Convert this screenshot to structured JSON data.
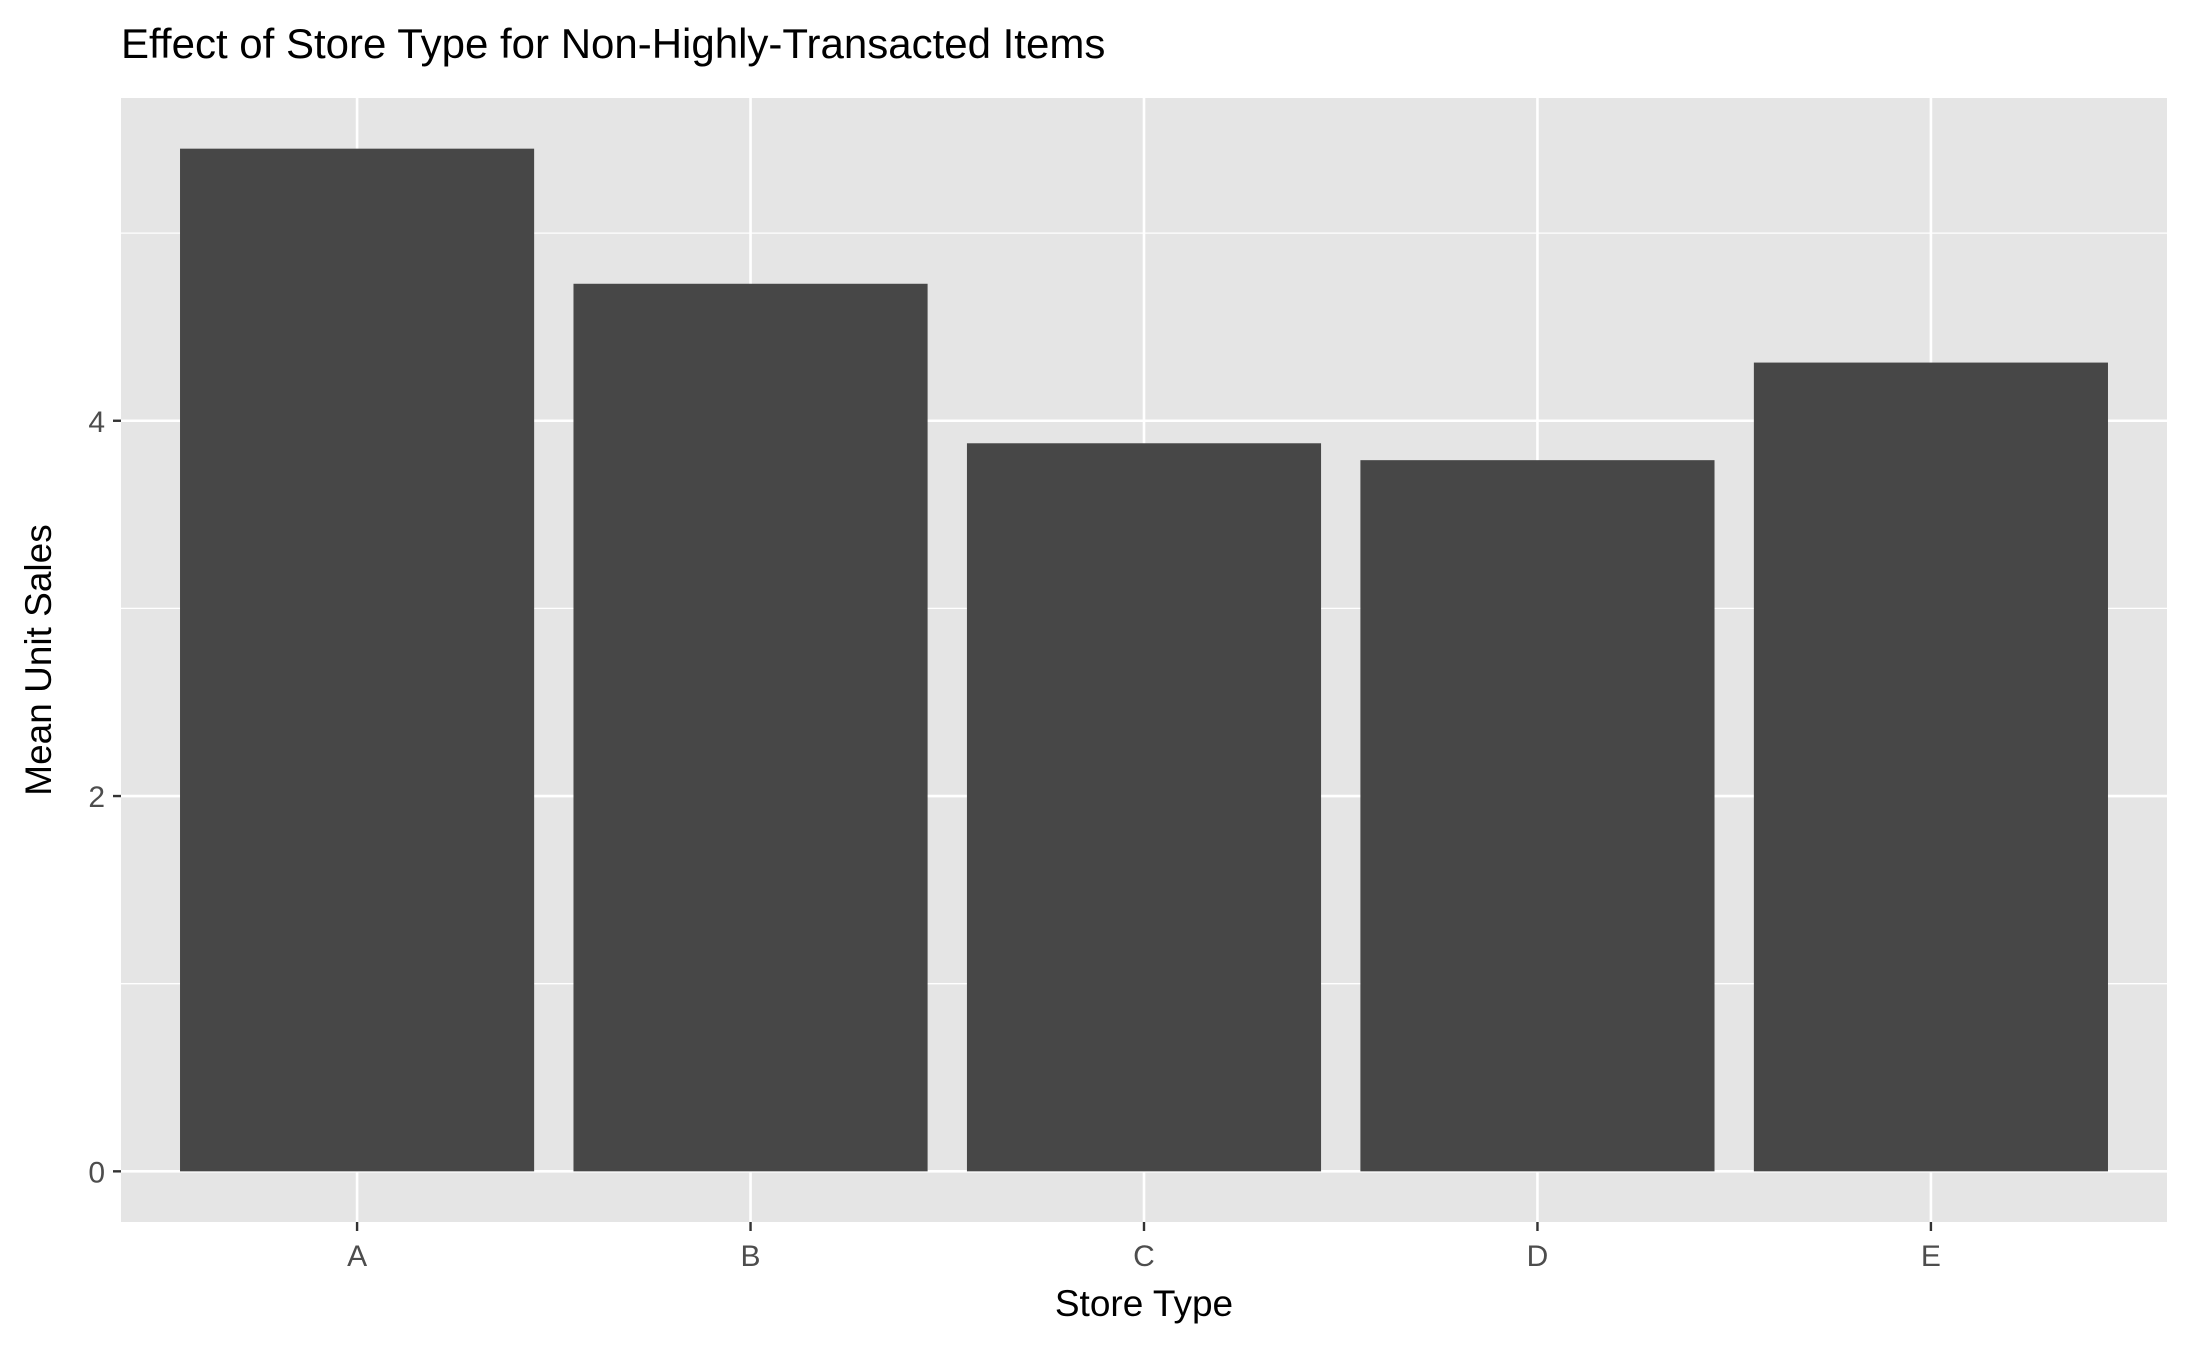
{
  "chart_data": {
    "type": "bar",
    "title": "Effect of Store Type for Non-Highly-Transacted Items",
    "xlabel": "Store Type",
    "ylabel": "Mean Unit Sales",
    "categories": [
      "A",
      "B",
      "C",
      "D",
      "E"
    ],
    "values": [
      5.45,
      4.73,
      3.88,
      3.79,
      4.31
    ],
    "ylim": [
      -0.27,
      5.72
    ],
    "yticks": [
      0,
      2,
      4
    ],
    "grid": true,
    "legend": "none",
    "colors": {
      "bar": "#474747",
      "panel": "#e5e5e5",
      "grid": "#ffffff",
      "tick_text": "#4d4d4d",
      "tick_mark": "#333333"
    }
  }
}
